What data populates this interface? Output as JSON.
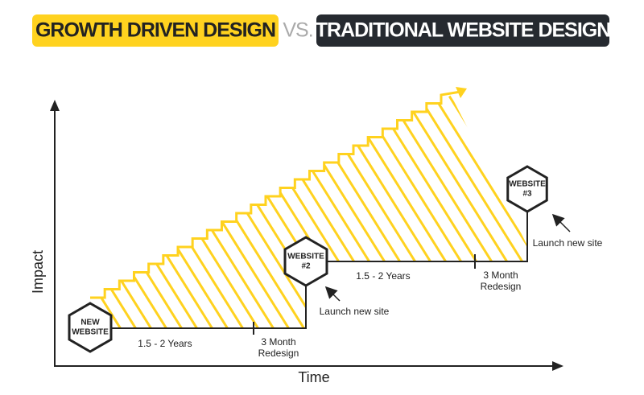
{
  "header": {
    "left": "GROWTH DRIVEN DESIGN",
    "vs": "VS.",
    "right": "TRADITIONAL WEBSITE DESIGN"
  },
  "axes": {
    "y": "Impact",
    "x": "Time"
  },
  "nodes": [
    {
      "label": [
        "NEW",
        "WEBSITE"
      ]
    },
    {
      "label": [
        "WEBSITE",
        "#2"
      ]
    },
    {
      "label": [
        "WEBSITE",
        "#3"
      ]
    }
  ],
  "annotations": [
    {
      "period": "1.5 - 2 Years",
      "redesign": [
        "3 Month",
        "Redesign"
      ],
      "launch": "Launch new site"
    },
    {
      "period": "1.5 - 2 Years",
      "redesign": [
        "3 Month",
        "Redesign"
      ],
      "launch": "Launch new site"
    }
  ]
}
